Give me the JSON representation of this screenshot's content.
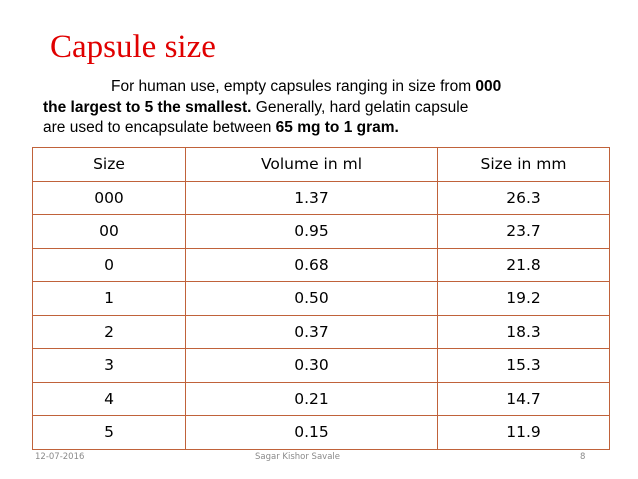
{
  "slide": {
    "title": "Capsule size",
    "intro": {
      "line1_text": "For human use, empty capsules ranging in size from ",
      "line1_bold": "000",
      "line2_bold": "the largest to 5 the smallest.",
      "line2_text": " Generally, hard gelatin capsule",
      "line3_text": "are used to encapsulate between ",
      "line3_bold": "65 mg to 1 gram."
    }
  },
  "table": {
    "headers": [
      "Size",
      "Volume in ml",
      "Size in mm"
    ],
    "rows": [
      [
        "000",
        "1.37",
        "26.3"
      ],
      [
        "00",
        "0.95",
        "23.7"
      ],
      [
        "0",
        "0.68",
        "21.8"
      ],
      [
        "1",
        "0.50",
        "19.2"
      ],
      [
        "2",
        "0.37",
        "18.3"
      ],
      [
        "3",
        "0.30",
        "15.3"
      ],
      [
        "4",
        "0.21",
        "14.7"
      ],
      [
        "5",
        "0.15",
        "11.9"
      ]
    ]
  },
  "footer": {
    "date": "12-07-2016",
    "author": "Sagar Kishor Savale",
    "page": "8"
  },
  "colors": {
    "title": "#e00000",
    "table_border": "#c0623a",
    "footer_text": "#8a8a8a"
  }
}
